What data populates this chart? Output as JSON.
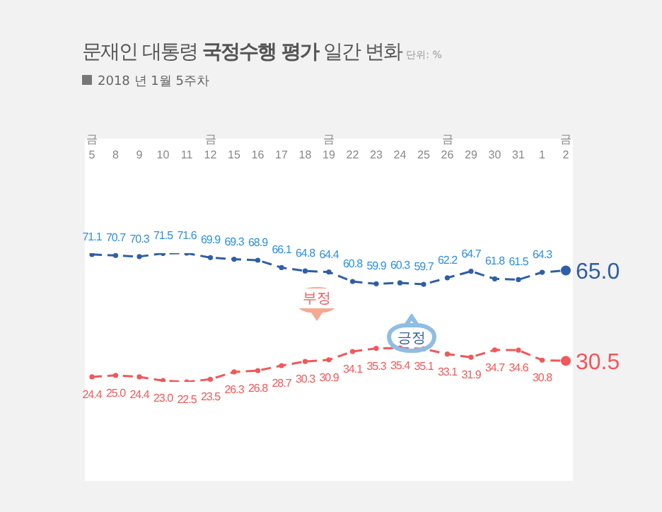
{
  "chart_data": {
    "type": "line",
    "title": "문재인 대통령 국정수행 평가 일간 변화",
    "subtitle": "2018 년 1월 5주차",
    "annotations": [
      "단위: %"
    ],
    "categories": [
      "금\n5",
      "8",
      "9",
      "10",
      "11",
      "금\n12",
      "15",
      "16",
      "17",
      "18",
      "금\n19",
      "22",
      "23",
      "24",
      "25",
      "금\n26",
      "29",
      "30",
      "31",
      "1",
      "금\n2"
    ],
    "series": [
      {
        "name": "긍정",
        "color": "#2f5ea8",
        "values": [
          71.1,
          70.7,
          70.3,
          71.5,
          71.6,
          69.9,
          69.3,
          68.9,
          66.1,
          64.8,
          64.4,
          60.8,
          59.9,
          60.3,
          59.7,
          62.2,
          64.7,
          61.8,
          61.5,
          64.3,
          65.0
        ],
        "value_labels": [
          "71.1",
          "70.7",
          "70.3",
          "71.5",
          "71.6",
          "69.9",
          "69.3",
          "68.9",
          "66.1",
          "64.8",
          "64.4",
          "60.8",
          "59.9",
          "60.3",
          "59.7",
          "62.2",
          "64.7",
          "61.8",
          "61.5",
          "64.3",
          "65.0"
        ]
      },
      {
        "name": "부정",
        "color": "#f2575a",
        "values": [
          24.4,
          25.0,
          24.4,
          23.0,
          22.5,
          23.5,
          26.3,
          26.8,
          28.7,
          30.3,
          30.9,
          34.1,
          35.3,
          35.4,
          35.1,
          33.1,
          31.9,
          34.7,
          34.6,
          30.8,
          30.5
        ],
        "value_labels": [
          "24.4",
          "25.0",
          "24.4",
          "23.0",
          "22.5",
          "23.5",
          "26.3",
          "26.8",
          "28.7",
          "30.3",
          "30.9",
          "34.1",
          "35.3",
          "35.4",
          "35.1",
          "33.1",
          "31.9",
          "34.7",
          "34.6",
          "30.8",
          "30.5"
        ]
      }
    ],
    "tick_labels": "x",
    "marker": "circle",
    "line_style": "dashed",
    "legend": false,
    "grid": false
  }
}
